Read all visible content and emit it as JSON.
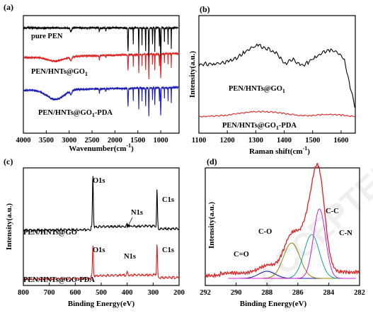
{
  "watermark": "ACCEPTED",
  "chart_data": [
    {
      "panel": "(a)",
      "type": "line",
      "xlabel": "Wavenumber(cm",
      "xlabel_sup": "-1",
      "xlabel_close": ")",
      "xlim": [
        4000,
        600
      ],
      "xticks": [
        "4000",
        "3500",
        "3000",
        "2500",
        "2000",
        "1500",
        "1000"
      ],
      "xtick_values": [
        4000,
        3500,
        3000,
        2500,
        2000,
        1500,
        1000
      ],
      "ylabel": "",
      "series": [
        {
          "name": "pure PEN",
          "color": "#000000"
        },
        {
          "name": "PEN/HNTs@GO1",
          "label_main": "PEN/HNTs@GO",
          "label_sub": "1",
          "color": "#dd2222"
        },
        {
          "name": "PEN/HNTs@GO1-PDA",
          "label_main": "PEN/HNTs@GO",
          "label_sub": "1",
          "label_tail": "-PDA",
          "color": "#1b1bb5"
        }
      ]
    },
    {
      "panel": "(b)",
      "type": "line",
      "xlabel": "Raman shift(cm",
      "xlabel_sup": "-1",
      "xlabel_close": ")",
      "xlim": [
        1100,
        1650
      ],
      "xticks": [
        "1100",
        "1200",
        "1300",
        "1400",
        "1500",
        "1600"
      ],
      "xtick_values": [
        1100,
        1200,
        1300,
        1400,
        1500,
        1600
      ],
      "ylabel": "Intensity(a.u.)",
      "series": [
        {
          "name": "PEN/HNTs@GO1",
          "label_main": "PEN/HNTs@GO",
          "label_sub": "1",
          "color": "#000000"
        },
        {
          "name": "PEN/HNTs@GO1-PDA",
          "label_main": "PEN/HNTs@GO",
          "label_sub": "1",
          "label_tail": "-PDA",
          "color": "#dd2222"
        }
      ]
    },
    {
      "panel": "(c)",
      "type": "line",
      "xlabel": "Binding Energy(eV)",
      "xlim": [
        800,
        200
      ],
      "xticks": [
        "800",
        "700",
        "600",
        "500",
        "400",
        "300",
        "200"
      ],
      "xtick_values": [
        800,
        700,
        600,
        500,
        400,
        300,
        200
      ],
      "ylabel": "Intensity(a.u.)",
      "series": [
        {
          "name": "PEN/HNTs@GO",
          "color": "#000000"
        },
        {
          "name": "PEN/HNTs@GO-PDA",
          "color": "#dd2222"
        }
      ],
      "annotations": [
        "O1s",
        "C1s",
        "N1s",
        "O1s",
        "N1s",
        "C1s"
      ]
    },
    {
      "panel": "(d)",
      "type": "line",
      "xlabel": "Binding Energy(eV)",
      "xlim": [
        292,
        282
      ],
      "xticks": [
        "292",
        "290",
        "288",
        "286",
        "284",
        "282"
      ],
      "xtick_values": [
        292,
        290,
        288,
        286,
        284,
        282
      ],
      "ylabel": "Intensity(a.u.)",
      "series": [
        {
          "name": "raw",
          "color": "#dd2222"
        },
        {
          "name": "C=O",
          "center": 288.0,
          "color": "#1a1aa0"
        },
        {
          "name": "C-O",
          "center": 286.4,
          "color": "#8a8a10"
        },
        {
          "name": "C-N",
          "center": 285.1,
          "color": "#19a0a0"
        },
        {
          "name": "C-C",
          "center": 284.6,
          "color": "#d020d0"
        }
      ],
      "annotations": [
        "C-C",
        "C-O",
        "C-N",
        "C=O"
      ]
    }
  ]
}
